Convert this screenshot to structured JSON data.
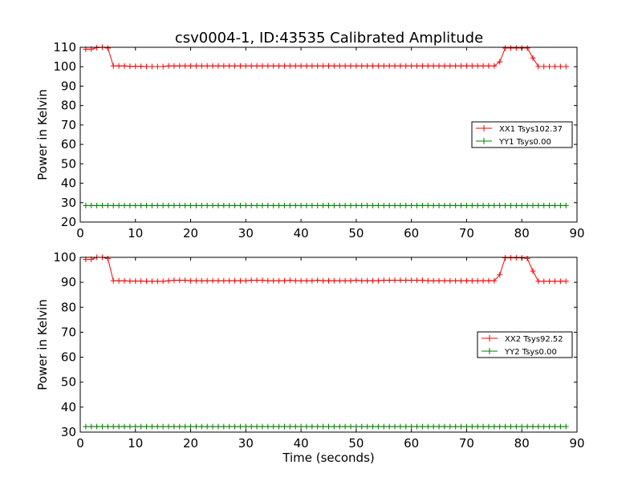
{
  "title": "csv0004-1, ID:43535 Calibrated Amplitude",
  "chart_data": [
    {
      "type": "line",
      "ylabel": "Power in Kelvin",
      "xlabel": "",
      "xlim": [
        0,
        90
      ],
      "ylim": [
        20,
        110
      ],
      "x_ticks": [
        0,
        10,
        20,
        30,
        40,
        50,
        60,
        70,
        80,
        90
      ],
      "y_ticks": [
        20,
        30,
        40,
        50,
        60,
        70,
        80,
        90,
        100,
        110
      ],
      "grid": false,
      "legend": "center-right",
      "x": [
        1,
        2,
        3,
        4,
        5,
        6,
        7,
        8,
        9,
        10,
        11,
        12,
        13,
        14,
        15,
        16,
        17,
        18,
        19,
        20,
        21,
        22,
        23,
        24,
        25,
        26,
        27,
        28,
        29,
        30,
        31,
        32,
        33,
        34,
        35,
        36,
        37,
        38,
        39,
        40,
        41,
        42,
        43,
        44,
        45,
        46,
        47,
        48,
        49,
        50,
        51,
        52,
        53,
        54,
        55,
        56,
        57,
        58,
        59,
        60,
        61,
        62,
        63,
        64,
        65,
        66,
        67,
        68,
        69,
        70,
        71,
        72,
        73,
        74,
        75,
        76,
        77,
        78,
        79,
        80,
        81,
        82,
        83,
        84,
        85,
        86,
        87,
        88
      ],
      "series": [
        {
          "name": "XX1 Tsys102.37",
          "color": "#ff0000",
          "values": [
            109,
            109,
            109.8,
            110,
            109.6,
            100.4,
            100.4,
            100.4,
            100.2,
            100.2,
            100.2,
            100.1,
            100.1,
            100.1,
            100.1,
            100.4,
            100.4,
            100.4,
            100.4,
            100.4,
            100.4,
            100.4,
            100.4,
            100.4,
            100.4,
            100.4,
            100.4,
            100.4,
            100.4,
            100.4,
            100.4,
            100.4,
            100.4,
            100.4,
            100.4,
            100.4,
            100.4,
            100.4,
            100.4,
            100.4,
            100.4,
            100.4,
            100.4,
            100.4,
            100.4,
            100.4,
            100.4,
            100.4,
            100.4,
            100.4,
            100.4,
            100.4,
            100.4,
            100.4,
            100.4,
            100.4,
            100.4,
            100.4,
            100.4,
            100.4,
            100.4,
            100.4,
            100.4,
            100.4,
            100.4,
            100.4,
            100.4,
            100.4,
            100.4,
            100.4,
            100.4,
            100.4,
            100.4,
            100.4,
            100.4,
            102.5,
            109.6,
            109.6,
            109.6,
            109.6,
            109.6,
            104.5,
            100.1,
            100.1,
            100.1,
            100.1,
            100.1,
            100.1
          ]
        },
        {
          "name": "YY1 Tsys0.00",
          "color": "#008000",
          "values": [
            28.5,
            28.5,
            28.5,
            28.5,
            28.5,
            28.5,
            28.5,
            28.5,
            28.5,
            28.5,
            28.5,
            28.5,
            28.5,
            28.5,
            28.5,
            28.5,
            28.5,
            28.5,
            28.5,
            28.5,
            28.5,
            28.5,
            28.5,
            28.5,
            28.5,
            28.5,
            28.5,
            28.5,
            28.5,
            28.5,
            28.5,
            28.5,
            28.5,
            28.5,
            28.5,
            28.5,
            28.5,
            28.5,
            28.5,
            28.5,
            28.5,
            28.5,
            28.5,
            28.5,
            28.5,
            28.5,
            28.5,
            28.5,
            28.5,
            28.5,
            28.5,
            28.5,
            28.5,
            28.5,
            28.5,
            28.5,
            28.5,
            28.5,
            28.5,
            28.5,
            28.5,
            28.5,
            28.5,
            28.5,
            28.5,
            28.5,
            28.5,
            28.5,
            28.5,
            28.5,
            28.5,
            28.5,
            28.5,
            28.5,
            28.5,
            28.5,
            28.5,
            28.5,
            28.5,
            28.5,
            28.5,
            28.5,
            28.5,
            28.5,
            28.5,
            28.5,
            28.5,
            28.5
          ]
        }
      ]
    },
    {
      "type": "line",
      "ylabel": "Power in Kelvin",
      "xlabel": "Time (seconds)",
      "xlim": [
        0,
        90
      ],
      "ylim": [
        30,
        100
      ],
      "x_ticks": [
        0,
        10,
        20,
        30,
        40,
        50,
        60,
        70,
        80,
        90
      ],
      "y_ticks": [
        30,
        40,
        50,
        60,
        70,
        80,
        90,
        100
      ],
      "grid": false,
      "legend": "center-right",
      "x": [
        1,
        2,
        3,
        4,
        5,
        6,
        7,
        8,
        9,
        10,
        11,
        12,
        13,
        14,
        15,
        16,
        17,
        18,
        19,
        20,
        21,
        22,
        23,
        24,
        25,
        26,
        27,
        28,
        29,
        30,
        31,
        32,
        33,
        34,
        35,
        36,
        37,
        38,
        39,
        40,
        41,
        42,
        43,
        44,
        45,
        46,
        47,
        48,
        49,
        50,
        51,
        52,
        53,
        54,
        55,
        56,
        57,
        58,
        59,
        60,
        61,
        62,
        63,
        64,
        65,
        66,
        67,
        68,
        69,
        70,
        71,
        72,
        73,
        74,
        75,
        76,
        77,
        78,
        79,
        80,
        81,
        82,
        83,
        84,
        85,
        86,
        87,
        88
      ],
      "series": [
        {
          "name": "XX2 Tsys92.52",
          "color": "#ff0000",
          "values": [
            99.2,
            99.2,
            100,
            100,
            99.5,
            90.6,
            90.6,
            90.6,
            90.5,
            90.5,
            90.5,
            90.4,
            90.4,
            90.4,
            90.4,
            90.6,
            90.8,
            90.8,
            90.8,
            90.6,
            90.6,
            90.6,
            90.6,
            90.6,
            90.6,
            90.6,
            90.6,
            90.6,
            90.6,
            90.6,
            90.8,
            90.8,
            90.8,
            90.6,
            90.6,
            90.6,
            90.6,
            90.8,
            90.6,
            90.6,
            90.6,
            90.6,
            90.8,
            90.6,
            90.6,
            90.6,
            90.6,
            90.6,
            90.6,
            90.8,
            90.6,
            90.6,
            90.6,
            90.6,
            90.8,
            90.8,
            90.8,
            90.8,
            90.8,
            90.8,
            90.8,
            90.8,
            90.6,
            90.6,
            90.6,
            90.6,
            90.6,
            90.6,
            90.6,
            90.6,
            90.6,
            90.6,
            90.6,
            90.6,
            90.6,
            93,
            99.8,
            99.8,
            99.8,
            99.8,
            99.5,
            94.5,
            90.4,
            90.4,
            90.4,
            90.4,
            90.4,
            90.4
          ]
        },
        {
          "name": "YY2 Tsys0.00",
          "color": "#008000",
          "values": [
            32.2,
            32.2,
            32.2,
            32.2,
            32.2,
            32.2,
            32.2,
            32.2,
            32.2,
            32.2,
            32.2,
            32.2,
            32.2,
            32.2,
            32.2,
            32.2,
            32.2,
            32.2,
            32.2,
            32.2,
            32.2,
            32.2,
            32.2,
            32.2,
            32.2,
            32.2,
            32.2,
            32.2,
            32.2,
            32.2,
            32.2,
            32.2,
            32.2,
            32.2,
            32.2,
            32.2,
            32.2,
            32.2,
            32.2,
            32.2,
            32.2,
            32.2,
            32.2,
            32.2,
            32.2,
            32.2,
            32.2,
            32.2,
            32.2,
            32.2,
            32.2,
            32.2,
            32.2,
            32.2,
            32.2,
            32.2,
            32.2,
            32.2,
            32.2,
            32.2,
            32.2,
            32.2,
            32.2,
            32.2,
            32.2,
            32.2,
            32.2,
            32.2,
            32.2,
            32.2,
            32.2,
            32.2,
            32.2,
            32.2,
            32.2,
            32.2,
            32.2,
            32.2,
            32.2,
            32.2,
            32.2,
            32.2,
            32.2,
            32.2,
            32.2,
            32.2,
            32.2,
            32.2
          ]
        }
      ]
    }
  ]
}
